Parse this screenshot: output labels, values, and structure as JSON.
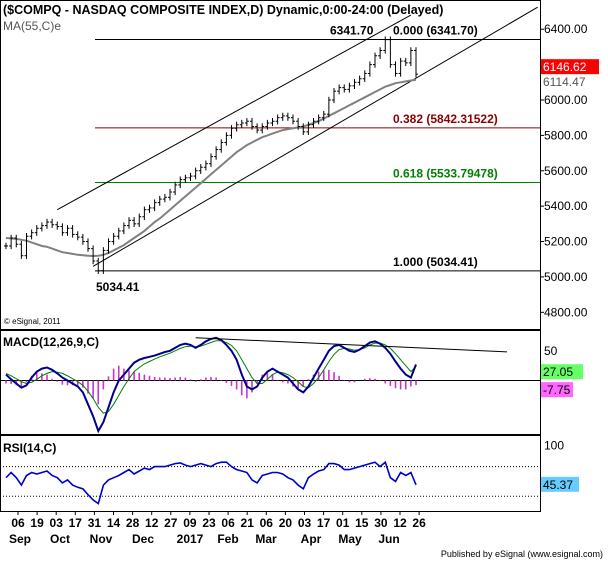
{
  "header": {
    "title": "($COMPQ - NASDAQ COMPOSITE INDEX,D) Dynamic,0:00-24:00 (Delayed)",
    "ma_label": "MA(55,C)e",
    "copyright": "© eSignal, 2011",
    "publisher": "Published by eSignal (www.esignal.com)"
  },
  "chart_data": [
    {
      "panel": "price",
      "type": "line",
      "y_axis_ticks": [
        4800,
        5000,
        5200,
        5400,
        5600,
        5800,
        6000,
        6200,
        6400
      ],
      "y_axis_tick_labels": [
        "4800.00",
        "5000.00",
        "5200.00",
        "5400.00",
        "5600.00",
        "5800.00",
        "6000.00",
        "6200.00",
        "6400.00"
      ],
      "ylim": [
        4700,
        6520
      ],
      "x_tick_labels": [
        "06",
        "19",
        "03",
        "17",
        "31",
        "14",
        "28",
        "12",
        "27",
        "09",
        "23",
        "06",
        "21",
        "06",
        "20",
        "03",
        "17",
        "01",
        "15",
        "30",
        "12",
        "26"
      ],
      "x_month_labels": [
        "Sep",
        "Oct",
        "Nov",
        "Dec",
        "2017",
        "Feb",
        "Mar",
        "Apr",
        "May",
        "Jun"
      ],
      "last_price": "6146.62",
      "ma_last": "6114.47",
      "close": [
        5175,
        5220,
        5185,
        5120,
        5230,
        5250,
        5275,
        5290,
        5310,
        5295,
        5285,
        5250,
        5275,
        5240,
        5225,
        5200,
        5160,
        5090,
        5035,
        5150,
        5200,
        5230,
        5260,
        5290,
        5320,
        5300,
        5340,
        5380,
        5390,
        5420,
        5440,
        5450,
        5480,
        5520,
        5550,
        5560,
        5570,
        5600,
        5620,
        5640,
        5680,
        5720,
        5760,
        5800,
        5840,
        5860,
        5870,
        5880,
        5850,
        5830,
        5850,
        5870,
        5880,
        5900,
        5910,
        5900,
        5880,
        5850,
        5820,
        5860,
        5880,
        5900,
        5920,
        6000,
        6050,
        6070,
        6060,
        6080,
        6100,
        6120,
        6150,
        6200,
        6250,
        6280,
        6341,
        6200,
        6150,
        6220,
        6210,
        6280,
        6146
      ],
      "ma": [
        5220,
        5218,
        5215,
        5210,
        5205,
        5195,
        5185,
        5175,
        5170,
        5160,
        5150,
        5140,
        5135,
        5130,
        5125,
        5122,
        5120,
        5118,
        5120,
        5125,
        5135,
        5150,
        5165,
        5180,
        5200,
        5220,
        5240,
        5260,
        5285,
        5310,
        5330,
        5355,
        5380,
        5405,
        5430,
        5455,
        5480,
        5505,
        5530,
        5555,
        5580,
        5605,
        5630,
        5655,
        5680,
        5705,
        5725,
        5745,
        5760,
        5775,
        5790,
        5800,
        5810,
        5820,
        5830,
        5835,
        5840,
        5845,
        5850,
        5860,
        5870,
        5880,
        5895,
        5910,
        5925,
        5940,
        5955,
        5970,
        5985,
        6000,
        6015,
        6030,
        6045,
        6060,
        6075,
        6085,
        6095,
        6100,
        6105,
        6110,
        6114
      ],
      "fib_levels": [
        {
          "label": "0.000 (6341.70)",
          "value": 6341.7,
          "color": "#000000"
        },
        {
          "label": "0.382 (5842.31522)",
          "value": 5842.31522,
          "color": "#8b0000"
        },
        {
          "label": "0.618 (5533.79478)",
          "value": 5533.79478,
          "color": "#008000"
        },
        {
          "label": "1.000 (5034.41)",
          "value": 5034.41,
          "color": "#000000"
        }
      ],
      "annotations": [
        {
          "text": "6341.70",
          "value": 6341.7
        },
        {
          "text": "5034.41",
          "value": 5034.41
        }
      ],
      "channel": {
        "upper": [
          [
            10,
            5380
          ],
          [
            79,
            6480
          ]
        ],
        "lower": [
          [
            17,
            5060
          ],
          [
            93,
            6270
          ]
        ]
      },
      "colors": {
        "price": "#000000",
        "ma": "#808080",
        "last_price_bg": "#ff0000"
      }
    },
    {
      "panel": "macd",
      "type": "line",
      "label": "MACD(12,26,9,C)",
      "y_axis_ticks": [
        50
      ],
      "y_axis_tick_labels": [
        "50"
      ],
      "ylim": [
        -90,
        80
      ],
      "macd": [
        10,
        2,
        -5,
        -12,
        -8,
        5,
        15,
        20,
        22,
        18,
        12,
        5,
        0,
        -5,
        -10,
        -20,
        -40,
        -60,
        -85,
        -70,
        -45,
        -20,
        0,
        10,
        20,
        30,
        35,
        38,
        40,
        42,
        45,
        48,
        50,
        55,
        60,
        62,
        60,
        55,
        60,
        66,
        70,
        72,
        68,
        60,
        50,
        35,
        10,
        -10,
        -15,
        -10,
        5,
        15,
        20,
        15,
        10,
        5,
        -5,
        -15,
        -20,
        -10,
        5,
        20,
        35,
        50,
        58,
        60,
        55,
        50,
        48,
        52,
        58,
        64,
        66,
        62,
        55,
        45,
        32,
        20,
        10,
        5,
        27
      ],
      "signal": [
        12,
        8,
        3,
        -2,
        -5,
        -3,
        2,
        8,
        12,
        15,
        14,
        12,
        8,
        3,
        -2,
        -8,
        -18,
        -30,
        -45,
        -55,
        -52,
        -40,
        -25,
        -10,
        3,
        15,
        22,
        28,
        32,
        36,
        40,
        43,
        46,
        50,
        54,
        57,
        58,
        57,
        58,
        61,
        64,
        67,
        67,
        64,
        59,
        50,
        35,
        20,
        5,
        -5,
        -5,
        2,
        10,
        14,
        13,
        10,
        5,
        -2,
        -10,
        -12,
        -5,
        5,
        18,
        32,
        44,
        52,
        54,
        53,
        51,
        52,
        55,
        60,
        63,
        63,
        60,
        54,
        45,
        35,
        25,
        15,
        24
      ],
      "histogram": [
        -5,
        -6,
        -8,
        -10,
        -3,
        8,
        13,
        12,
        10,
        3,
        -2,
        -7,
        -8,
        -8,
        -8,
        -12,
        -22,
        -30,
        -40,
        -15,
        7,
        20,
        25,
        20,
        17,
        15,
        13,
        10,
        8,
        6,
        5,
        5,
        4,
        5,
        6,
        5,
        2,
        -2,
        2,
        5,
        6,
        5,
        1,
        -4,
        -9,
        -15,
        -25,
        -30,
        -20,
        -5,
        10,
        13,
        10,
        1,
        -3,
        -5,
        -10,
        -13,
        -10,
        2,
        10,
        15,
        17,
        18,
        14,
        8,
        1,
        -3,
        -3,
        0,
        3,
        4,
        3,
        -1,
        -5,
        -9,
        -13,
        -15,
        -15,
        -10,
        -7.75
      ],
      "trendline": [
        [
          37,
          72
        ],
        [
          88,
          55
        ]
      ],
      "last_macd": "27.05",
      "last_hist": "-7.75",
      "colors": {
        "macd": "#00008b",
        "signal": "#008000",
        "histogram": "#cc33cc",
        "last_macd_bg": "#66ff66",
        "last_hist_bg": "#ff66ff"
      }
    },
    {
      "panel": "rsi",
      "type": "line",
      "label": "RSI(14,C)",
      "y_axis_ticks": [
        100
      ],
      "y_axis_tick_labels": [
        "100"
      ],
      "ylim": [
        10,
        110
      ],
      "upper_band": 70,
      "lower_band": 30,
      "rsi": [
        55,
        62,
        55,
        45,
        58,
        62,
        60,
        62,
        64,
        58,
        55,
        48,
        52,
        45,
        42,
        40,
        32,
        25,
        20,
        45,
        52,
        55,
        58,
        62,
        66,
        60,
        64,
        68,
        66,
        70,
        70,
        70,
        72,
        74,
        75,
        72,
        70,
        72,
        74,
        72,
        70,
        74,
        76,
        76,
        70,
        66,
        64,
        62,
        52,
        48,
        58,
        60,
        62,
        62,
        60,
        55,
        52,
        45,
        40,
        55,
        60,
        64,
        66,
        74,
        74,
        72,
        66,
        66,
        68,
        70,
        72,
        74,
        76,
        70,
        76,
        55,
        50,
        62,
        58,
        62,
        45.37
      ],
      "last_rsi": "45.37",
      "colors": {
        "rsi": "#0000cd",
        "last_rsi_bg": "#66ccff"
      }
    }
  ]
}
